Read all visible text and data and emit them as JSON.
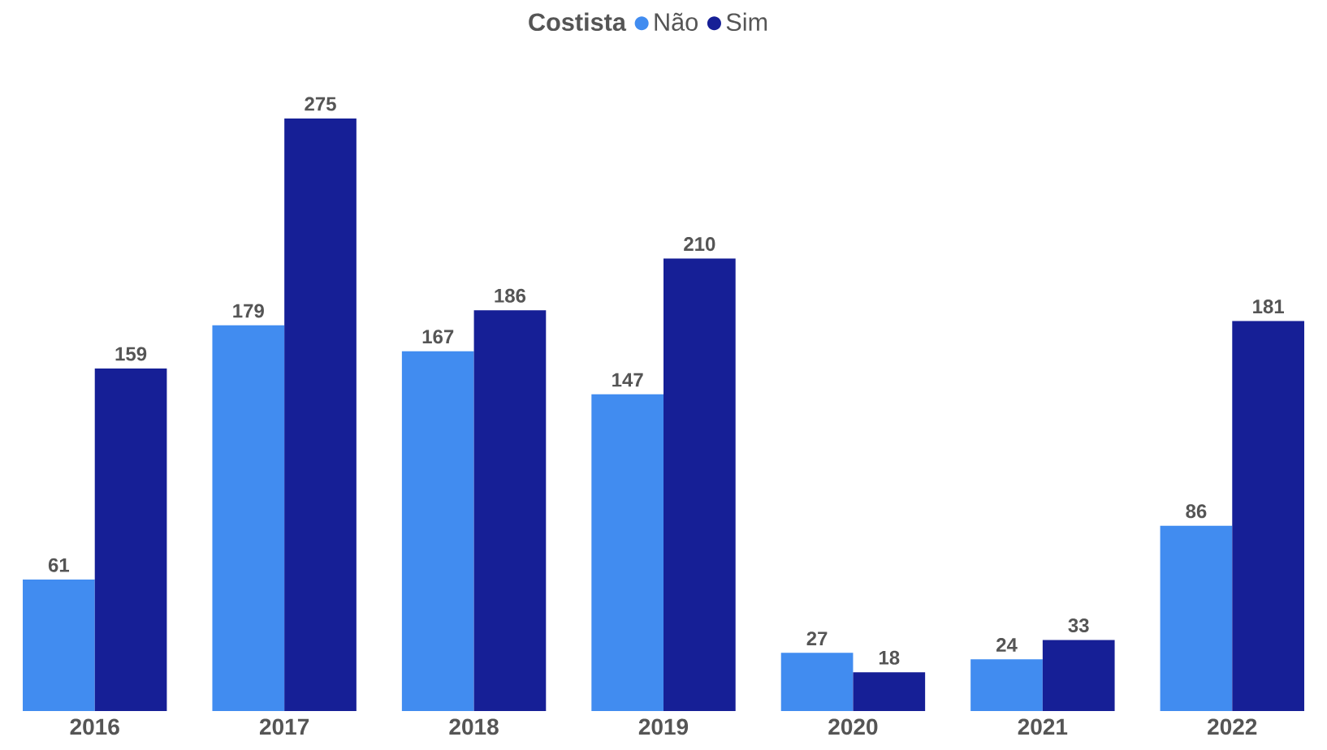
{
  "chart_data": {
    "type": "bar",
    "legend_title": "Costista",
    "categories": [
      "2016",
      "2017",
      "2018",
      "2019",
      "2020",
      "2021",
      "2022"
    ],
    "series": [
      {
        "name": "Não",
        "color": "#418cf0",
        "values": [
          61,
          179,
          167,
          147,
          27,
          24,
          86
        ]
      },
      {
        "name": "Sim",
        "color": "#161f96",
        "values": [
          159,
          275,
          186,
          210,
          18,
          33,
          181
        ]
      }
    ],
    "data_labels": true,
    "legend": "top"
  }
}
